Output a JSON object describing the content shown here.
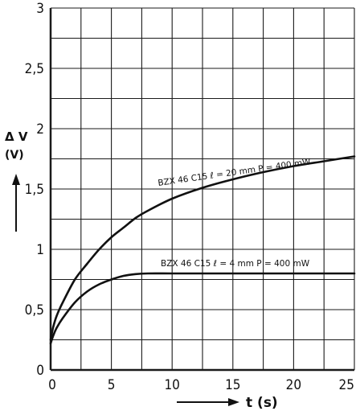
{
  "chart_data": {
    "type": "line",
    "title": "",
    "xlabel": "t (s)",
    "ylabel_line1": "Δ V",
    "ylabel_line2": "(V)",
    "xlim": [
      0,
      25
    ],
    "ylim": [
      0,
      3
    ],
    "grid": true,
    "x_ticks": [
      0,
      5,
      10,
      15,
      20,
      25
    ],
    "x_tick_labels": [
      "0",
      "5",
      "10",
      "15",
      "20",
      "25"
    ],
    "y_ticks": [
      0,
      0.5,
      1,
      1.5,
      2,
      2.5,
      3
    ],
    "y_tick_labels": [
      "0",
      "0,5",
      "1",
      "1,5",
      "2",
      "2,5",
      "3"
    ],
    "series": [
      {
        "name": "BZX 46 C15 ℓ = 20 mm  P = 400 mW",
        "x": [
          0,
          0.2,
          0.5,
          1,
          2,
          3,
          4,
          5,
          6,
          7,
          8,
          10,
          12.5,
          15,
          17.5,
          20,
          22.5,
          25
        ],
        "y": [
          0.25,
          0.35,
          0.45,
          0.56,
          0.75,
          0.88,
          1.0,
          1.1,
          1.18,
          1.26,
          1.32,
          1.42,
          1.51,
          1.58,
          1.64,
          1.69,
          1.73,
          1.77
        ]
      },
      {
        "name": "BZX 46 C15 ℓ = 4 mm  P = 400 mW",
        "x": [
          0,
          0.2,
          0.5,
          1,
          2,
          3,
          4,
          5,
          6,
          7,
          8,
          10,
          12.5,
          15,
          20,
          25
        ],
        "y": [
          0.22,
          0.28,
          0.35,
          0.43,
          0.56,
          0.65,
          0.71,
          0.75,
          0.78,
          0.795,
          0.8,
          0.8,
          0.8,
          0.8,
          0.8,
          0.8
        ]
      }
    ]
  }
}
